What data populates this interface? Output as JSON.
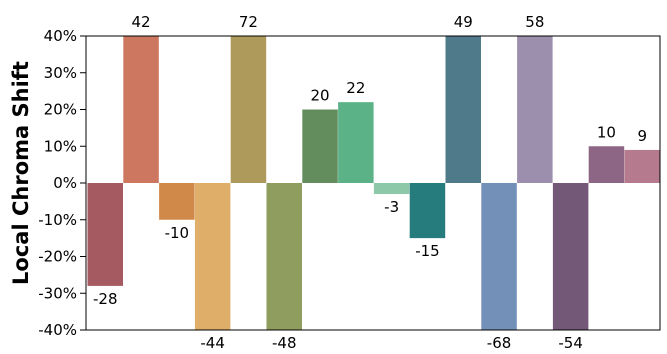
{
  "chart_data": {
    "type": "bar",
    "title": "",
    "xlabel": "",
    "ylabel": "Local Chroma Shift",
    "ylim": [
      -40,
      40
    ],
    "yticks": [
      -40,
      -30,
      -20,
      -10,
      0,
      10,
      20,
      30,
      40
    ],
    "ytick_labels": [
      "-40%",
      "-30%",
      "-20%",
      "-10%",
      "0%",
      "10%",
      "20%",
      "30%",
      "40%"
    ],
    "grid": false,
    "legend": "none",
    "values": [
      -28,
      42,
      -10,
      -44,
      72,
      -48,
      20,
      22,
      -3,
      -15,
      49,
      -68,
      58,
      -54,
      10,
      9
    ],
    "value_labels": [
      "-28",
      "42",
      "-10",
      "-44",
      "72",
      "-48",
      "20",
      "22",
      "-3",
      "-15",
      "49",
      "-68",
      "58",
      "-54",
      "10",
      "9"
    ],
    "colors": [
      "#a55a62",
      "#ce7760",
      "#d1894a",
      "#dfae68",
      "#ae9b5b",
      "#8f9d5f",
      "#638d5d",
      "#5cb287",
      "#8dc8a8",
      "#267c7c",
      "#4f7a8a",
      "#7390b9",
      "#9c8ead",
      "#745878",
      "#8d6585",
      "#b57a8d"
    ]
  }
}
